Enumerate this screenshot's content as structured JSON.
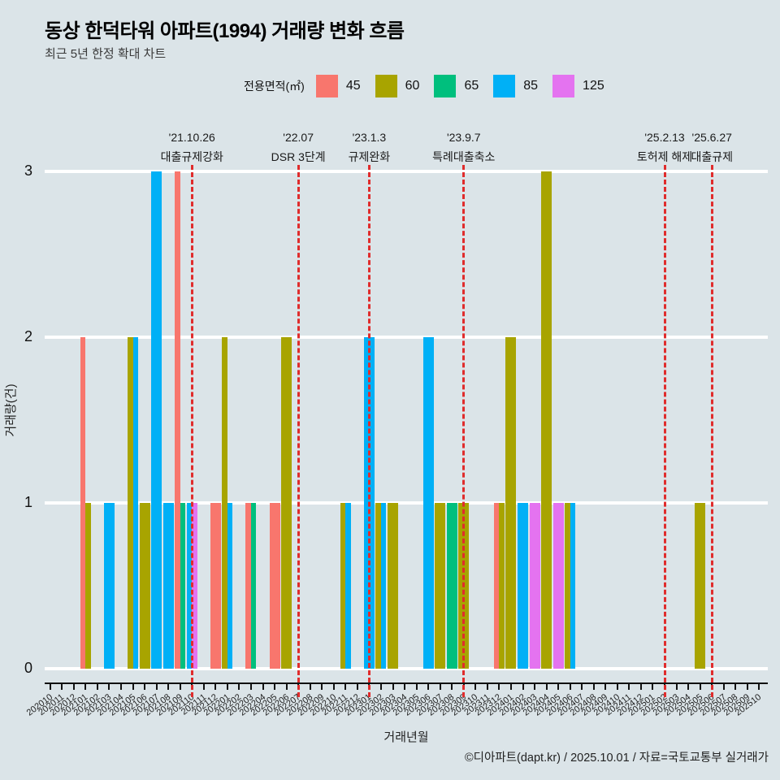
{
  "title": "동상 한덕타워 아파트(1994) 거래량 변화 흐름",
  "subtitle": "최근 5년 한정 확대 차트",
  "legend": {
    "title": "전용면적(㎡)",
    "items": [
      {
        "label": "45",
        "color": "#F8766D"
      },
      {
        "label": "60",
        "color": "#A8A400"
      },
      {
        "label": "65",
        "color": "#00BF7D"
      },
      {
        "label": "85",
        "color": "#00B0F6"
      },
      {
        "label": "125",
        "color": "#E473F0"
      }
    ]
  },
  "chart_data": {
    "type": "bar",
    "grouping": "dodged",
    "title": "동상 한덕타워 아파트(1994) 거래량 변화 흐름",
    "xlabel": "거래년월",
    "ylabel": "거래량(건)",
    "ylim": [
      0,
      3
    ],
    "yticks": [
      0,
      1,
      2,
      3
    ],
    "grid": "horizontal-white",
    "legend_position": "top",
    "annotation_line_color": "#E02C2C",
    "x_categories": [
      "202010",
      "202011",
      "202012",
      "202101",
      "202102",
      "202103",
      "202104",
      "202105",
      "202106",
      "202107",
      "202108",
      "202109",
      "202110",
      "202111",
      "202112",
      "202201",
      "202202",
      "202203",
      "202204",
      "202205",
      "202206",
      "202207",
      "202208",
      "202209",
      "202210",
      "202211",
      "202212",
      "202301",
      "202302",
      "202303",
      "202304",
      "202305",
      "202306",
      "202307",
      "202308",
      "202309",
      "202310",
      "202311",
      "202312",
      "202401",
      "202402",
      "202403",
      "202404",
      "202405",
      "202406",
      "202407",
      "202408",
      "202409",
      "202410",
      "202411",
      "202412",
      "202501",
      "202502",
      "202503",
      "202504",
      "202505",
      "202506",
      "202507",
      "202508",
      "202509",
      "202510"
    ],
    "bars": [
      {
        "month": "202101",
        "area": "45",
        "count": 2
      },
      {
        "month": "202101",
        "area": "60",
        "count": 1
      },
      {
        "month": "202103",
        "area": "85",
        "count": 1
      },
      {
        "month": "202105",
        "area": "60",
        "count": 2
      },
      {
        "month": "202105",
        "area": "85",
        "count": 2
      },
      {
        "month": "202106",
        "area": "60",
        "count": 1
      },
      {
        "month": "202107",
        "area": "85",
        "count": 3
      },
      {
        "month": "202108",
        "area": "85",
        "count": 1
      },
      {
        "month": "202109",
        "area": "45",
        "count": 3
      },
      {
        "month": "202109",
        "area": "65",
        "count": 1
      },
      {
        "month": "202110",
        "area": "85",
        "count": 1
      },
      {
        "month": "202110",
        "area": "125",
        "count": 1
      },
      {
        "month": "202112",
        "area": "45",
        "count": 1
      },
      {
        "month": "202201",
        "area": "60",
        "count": 2
      },
      {
        "month": "202201",
        "area": "85",
        "count": 1
      },
      {
        "month": "202203",
        "area": "45",
        "count": 1
      },
      {
        "month": "202203",
        "area": "65",
        "count": 1
      },
      {
        "month": "202205",
        "area": "45",
        "count": 1
      },
      {
        "month": "202206",
        "area": "60",
        "count": 2
      },
      {
        "month": "202211",
        "area": "60",
        "count": 1
      },
      {
        "month": "202211",
        "area": "85",
        "count": 1
      },
      {
        "month": "202301",
        "area": "85",
        "count": 2
      },
      {
        "month": "202302",
        "area": "60",
        "count": 1
      },
      {
        "month": "202302",
        "area": "85",
        "count": 1
      },
      {
        "month": "202303",
        "area": "60",
        "count": 1
      },
      {
        "month": "202306",
        "area": "85",
        "count": 2
      },
      {
        "month": "202307",
        "area": "60",
        "count": 1
      },
      {
        "month": "202308",
        "area": "65",
        "count": 1
      },
      {
        "month": "202309",
        "area": "60",
        "count": 1
      },
      {
        "month": "202312",
        "area": "45",
        "count": 1
      },
      {
        "month": "202312",
        "area": "60",
        "count": 1
      },
      {
        "month": "202401",
        "area": "60",
        "count": 2
      },
      {
        "month": "202402",
        "area": "85",
        "count": 1
      },
      {
        "month": "202403",
        "area": "125",
        "count": 1
      },
      {
        "month": "202404",
        "area": "60",
        "count": 3
      },
      {
        "month": "202405",
        "area": "125",
        "count": 1
      },
      {
        "month": "202406",
        "area": "60",
        "count": 1
      },
      {
        "month": "202406",
        "area": "85",
        "count": 1
      },
      {
        "month": "202505",
        "area": "60",
        "count": 1
      }
    ],
    "annotations": [
      {
        "month": "202110",
        "date": "'21.10.26",
        "label": "대출규제강화"
      },
      {
        "month": "202207",
        "date": "'22.07",
        "label": "DSR 3단계"
      },
      {
        "month": "202301",
        "date": "'23.1.3",
        "label": "규제완화"
      },
      {
        "month": "202309",
        "date": "'23.9.7",
        "label": "특례대출축소"
      },
      {
        "month": "202502",
        "date": "'25.2.13",
        "label": "토허제 해제"
      },
      {
        "month": "202506",
        "date": "'25.6.27",
        "label": "대출규제"
      }
    ]
  },
  "footer": "©디아파트(dapt.kr) / 2025.10.01 / 자료=국토교통부 실거래가"
}
